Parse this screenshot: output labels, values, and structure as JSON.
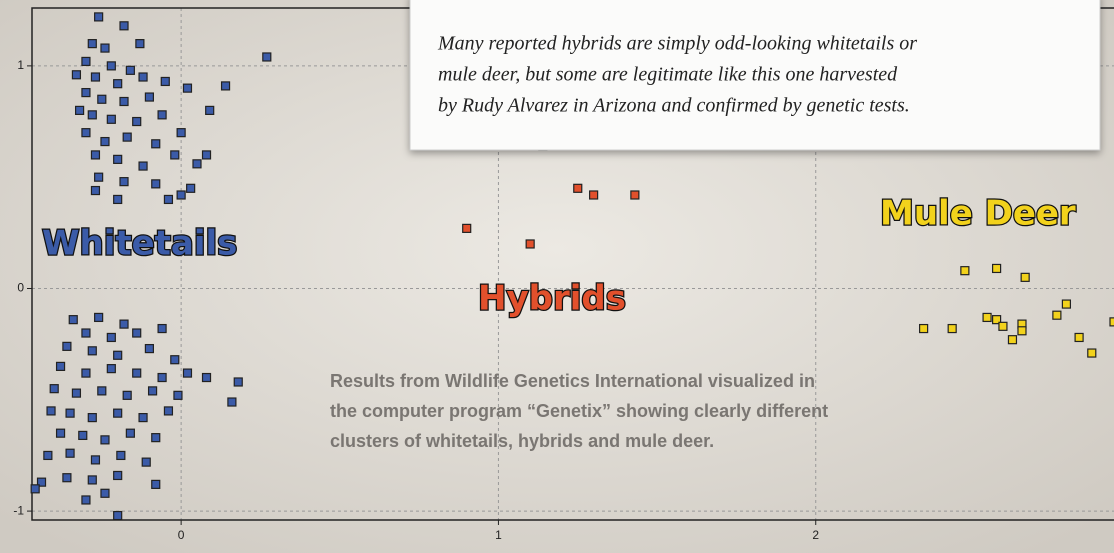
{
  "chart_data": {
    "type": "scatter",
    "xlim": [
      -0.47,
      2.94
    ],
    "ylim": [
      -1.04,
      1.26
    ],
    "xticks": [
      0,
      1,
      2
    ],
    "yticks": [
      -1,
      0,
      1
    ],
    "grid": true,
    "series": [
      {
        "name": "Whitetails",
        "color": "#3b5ba8",
        "x": [
          -0.26,
          -0.18,
          -0.28,
          -0.24,
          -0.3,
          -0.22,
          -0.16,
          -0.27,
          -0.2,
          -0.12,
          -0.05,
          -0.3,
          -0.25,
          -0.18,
          -0.1,
          0.02,
          -0.28,
          -0.22,
          -0.14,
          -0.06,
          0.09,
          0.14,
          0.27,
          -0.3,
          -0.24,
          -0.17,
          -0.08,
          0.0,
          -0.27,
          -0.2,
          -0.12,
          -0.02,
          0.05,
          -0.26,
          -0.18,
          -0.08,
          0.03,
          -0.27,
          -0.2,
          -0.04,
          0.0,
          -0.33,
          -0.32,
          0.08,
          -0.13,
          -0.34,
          -0.26,
          -0.18,
          -0.3,
          -0.22,
          -0.14,
          -0.06,
          -0.36,
          -0.28,
          -0.2,
          -0.1,
          -0.02,
          -0.38,
          -0.3,
          -0.22,
          -0.14,
          -0.06,
          0.02,
          0.08,
          0.18,
          0.16,
          -0.4,
          -0.33,
          -0.25,
          -0.17,
          -0.09,
          -0.01,
          -0.41,
          -0.35,
          -0.28,
          -0.2,
          -0.12,
          -0.04,
          -0.38,
          -0.31,
          -0.24,
          -0.16,
          -0.08,
          -0.42,
          -0.35,
          -0.27,
          -0.19,
          -0.11,
          -0.44,
          -0.36,
          -0.28,
          -0.2,
          -0.08,
          -0.3,
          -0.2,
          -0.46,
          -0.24
        ],
        "values": [
          1.22,
          1.18,
          1.1,
          1.08,
          1.02,
          1.0,
          0.98,
          0.95,
          0.92,
          0.95,
          0.93,
          0.88,
          0.85,
          0.84,
          0.86,
          0.9,
          0.78,
          0.76,
          0.75,
          0.78,
          0.8,
          0.91,
          1.04,
          0.7,
          0.66,
          0.68,
          0.65,
          0.7,
          0.6,
          0.58,
          0.55,
          0.6,
          0.56,
          0.5,
          0.48,
          0.47,
          0.45,
          0.44,
          0.4,
          0.4,
          0.42,
          0.96,
          0.8,
          0.6,
          1.1,
          -0.14,
          -0.13,
          -0.16,
          -0.2,
          -0.22,
          -0.2,
          -0.18,
          -0.26,
          -0.28,
          -0.3,
          -0.27,
          -0.32,
          -0.35,
          -0.38,
          -0.36,
          -0.38,
          -0.4,
          -0.38,
          -0.4,
          -0.42,
          -0.51,
          -0.45,
          -0.47,
          -0.46,
          -0.48,
          -0.46,
          -0.48,
          -0.55,
          -0.56,
          -0.58,
          -0.56,
          -0.58,
          -0.55,
          -0.65,
          -0.66,
          -0.68,
          -0.65,
          -0.67,
          -0.75,
          -0.74,
          -0.77,
          -0.75,
          -0.78,
          -0.87,
          -0.85,
          -0.86,
          -0.84,
          -0.88,
          -0.95,
          -1.02,
          -0.9,
          -0.92
        ]
      },
      {
        "name": "Hybrids",
        "color": "#e2502c",
        "x": [
          1.14,
          1.25,
          1.3,
          1.43,
          0.9,
          1.1
        ],
        "values": [
          0.64,
          0.45,
          0.42,
          0.42,
          0.27,
          0.2
        ]
      },
      {
        "name": "Mule Deer",
        "color": "#f2d21c",
        "x": [
          2.47,
          2.57,
          2.66,
          2.34,
          2.43,
          2.54,
          2.57,
          2.59,
          2.62,
          2.65,
          2.76,
          2.79,
          2.83,
          2.87,
          2.94,
          2.65
        ],
        "values": [
          0.08,
          0.09,
          0.05,
          -0.18,
          -0.18,
          -0.13,
          -0.14,
          -0.17,
          -0.23,
          -0.16,
          -0.12,
          -0.07,
          -0.22,
          -0.29,
          -0.15,
          -0.19
        ]
      }
    ],
    "note": [
      "Many reported hybrids are simply odd-looking whitetails or",
      "mule deer, but some are legitimate like this one harvested",
      "by Rudy Alvarez in Arizona and confirmed by genetic tests."
    ],
    "caption": [
      "Results from Wildlife Genetics International visualized in",
      "the computer program “Genetix” showing clearly different",
      "clusters of whitetails, hybrids and mule deer."
    ]
  }
}
